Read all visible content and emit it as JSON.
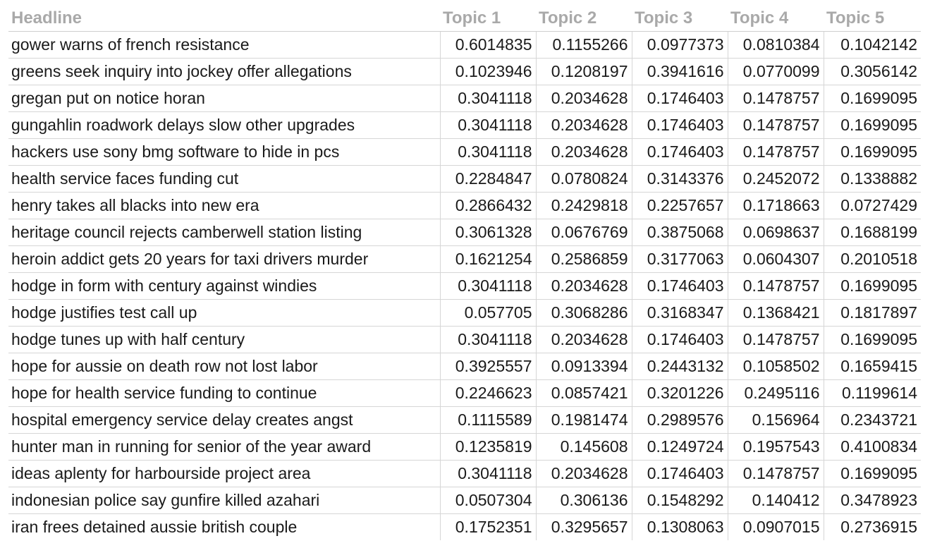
{
  "table": {
    "columns": [
      "Headline",
      "Topic 1",
      "Topic 2",
      "Topic 3",
      "Topic 4",
      "Topic 5"
    ],
    "rows": [
      [
        "gower warns of french resistance",
        "0.6014835",
        "0.1155266",
        "0.0977373",
        "0.0810384",
        "0.1042142"
      ],
      [
        "greens seek inquiry into jockey offer allegations",
        "0.1023946",
        "0.1208197",
        "0.3941616",
        "0.0770099",
        "0.3056142"
      ],
      [
        "gregan put on notice horan",
        "0.3041118",
        "0.2034628",
        "0.1746403",
        "0.1478757",
        "0.1699095"
      ],
      [
        "gungahlin roadwork delays slow other upgrades",
        "0.3041118",
        "0.2034628",
        "0.1746403",
        "0.1478757",
        "0.1699095"
      ],
      [
        "hackers use sony bmg software to hide in pcs",
        "0.3041118",
        "0.2034628",
        "0.1746403",
        "0.1478757",
        "0.1699095"
      ],
      [
        "health service faces funding cut",
        "0.2284847",
        "0.0780824",
        "0.3143376",
        "0.2452072",
        "0.1338882"
      ],
      [
        "henry takes all blacks into new era",
        "0.2866432",
        "0.2429818",
        "0.2257657",
        "0.1718663",
        "0.0727429"
      ],
      [
        "heritage council rejects camberwell station listing",
        "0.3061328",
        "0.0676769",
        "0.3875068",
        "0.0698637",
        "0.1688199"
      ],
      [
        "heroin addict gets 20 years for taxi drivers murder",
        "0.1621254",
        "0.2586859",
        "0.3177063",
        "0.0604307",
        "0.2010518"
      ],
      [
        "hodge in form with century against windies",
        "0.3041118",
        "0.2034628",
        "0.1746403",
        "0.1478757",
        "0.1699095"
      ],
      [
        "hodge justifies test call up",
        "0.057705",
        "0.3068286",
        "0.3168347",
        "0.1368421",
        "0.1817897"
      ],
      [
        "hodge tunes up with half century",
        "0.3041118",
        "0.2034628",
        "0.1746403",
        "0.1478757",
        "0.1699095"
      ],
      [
        "hope for aussie on death row not lost labor",
        "0.3925557",
        "0.0913394",
        "0.2443132",
        "0.1058502",
        "0.1659415"
      ],
      [
        "hope for health service funding to continue",
        "0.2246623",
        "0.0857421",
        "0.3201226",
        "0.2495116",
        "0.1199614"
      ],
      [
        "hospital emergency service delay creates angst",
        "0.1115589",
        "0.1981474",
        "0.2989576",
        "0.156964",
        "0.2343721"
      ],
      [
        "hunter man in running for senior of the year award",
        "0.1235819",
        "0.145608",
        "0.1249724",
        "0.1957543",
        "0.4100834"
      ],
      [
        "ideas aplenty for harbourside project area",
        "0.3041118",
        "0.2034628",
        "0.1746403",
        "0.1478757",
        "0.1699095"
      ],
      [
        "indonesian police say gunfire killed azahari",
        "0.0507304",
        "0.306136",
        "0.1548292",
        "0.140412",
        "0.3478923"
      ],
      [
        "iran frees detained aussie british couple",
        "0.1752351",
        "0.3295657",
        "0.1308063",
        "0.0907015",
        "0.2736915"
      ]
    ]
  }
}
